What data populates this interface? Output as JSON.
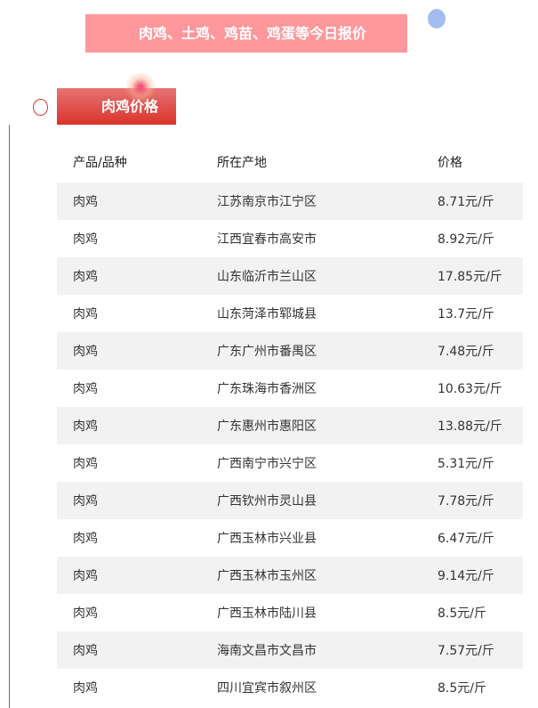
{
  "banner": {
    "title": "肉鸡、土鸡、鸡苗、鸡蛋等今日报价"
  },
  "section": {
    "title": "肉鸡价格"
  },
  "table": {
    "headers": [
      "产品/品种",
      "所在产地",
      "价格"
    ],
    "rows": [
      [
        "肉鸡",
        "江苏南京市江宁区",
        "8.71元/斤"
      ],
      [
        "肉鸡",
        "江西宜春市高安市",
        "8.92元/斤"
      ],
      [
        "肉鸡",
        "山东临沂市兰山区",
        "17.85元/斤"
      ],
      [
        "肉鸡",
        "山东菏泽市郓城县",
        "13.7元/斤"
      ],
      [
        "肉鸡",
        "广东广州市番禺区",
        "7.48元/斤"
      ],
      [
        "肉鸡",
        "广东珠海市香洲区",
        "10.63元/斤"
      ],
      [
        "肉鸡",
        "广东惠州市惠阳区",
        "13.88元/斤"
      ],
      [
        "肉鸡",
        "广西南宁市兴宁区",
        "5.31元/斤"
      ],
      [
        "肉鸡",
        "广西钦州市灵山县",
        "7.78元/斤"
      ],
      [
        "肉鸡",
        "广西玉林市兴业县",
        "6.47元/斤"
      ],
      [
        "肉鸡",
        "广西玉林市玉州区",
        "9.14元/斤"
      ],
      [
        "肉鸡",
        "广西玉林市陆川县",
        "8.5元/斤"
      ],
      [
        "肉鸡",
        "海南文昌市文昌市",
        "7.57元/斤"
      ],
      [
        "肉鸡",
        "四川宜宾市叙州区",
        "8.5元/斤"
      ]
    ]
  }
}
